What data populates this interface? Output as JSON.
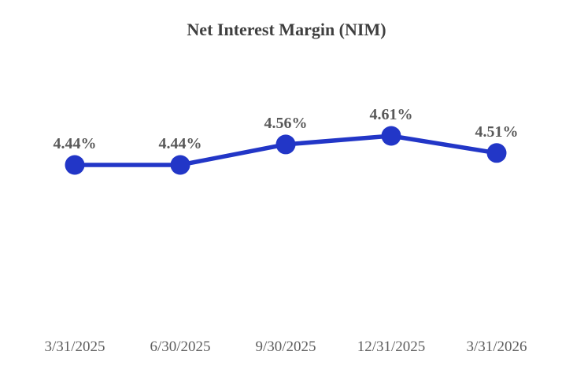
{
  "chart_data": {
    "type": "line",
    "title": "Net Interest Margin (NIM)",
    "categories": [
      "3/31/2025",
      "6/30/2025",
      "9/30/2025",
      "12/31/2025",
      "3/31/2026"
    ],
    "values": [
      4.44,
      4.44,
      4.56,
      4.61,
      4.51
    ],
    "point_labels": [
      "4.44%",
      "4.44%",
      "4.56%",
      "4.61%",
      "4.51%"
    ],
    "xlabel": "",
    "ylabel": "",
    "ylim": [
      4.35,
      4.7
    ],
    "grid": false,
    "legend": false,
    "axes_visible": false,
    "line_color": "#2236c7",
    "marker_color": "#2236c7",
    "point_label_color": "#595959",
    "axis_label_color": "#5f5f5f",
    "title_color": "#3f3f3f",
    "background_color": "#ffffff"
  }
}
